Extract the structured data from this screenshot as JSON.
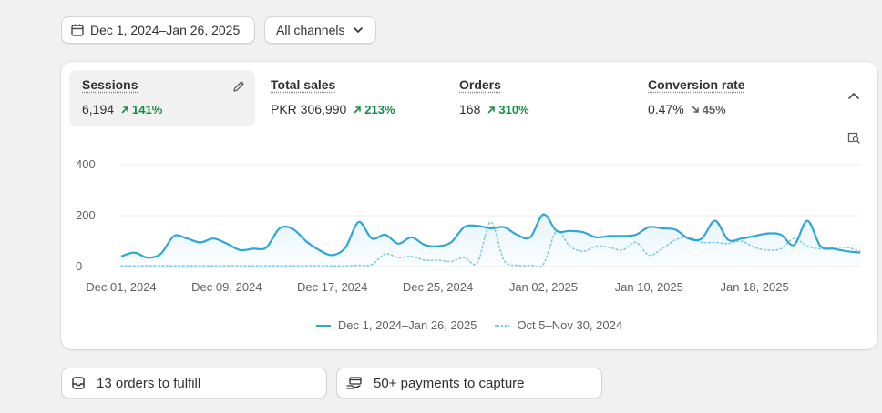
{
  "filters": {
    "date_range": "Dec 1, 2024–Jan 26, 2025",
    "channel": "All channels"
  },
  "metrics": [
    {
      "label": "Sessions",
      "value": "6,194",
      "change": "141%",
      "direction": "up"
    },
    {
      "label": "Total sales",
      "value": "PKR 306,990",
      "change": "213%",
      "direction": "up"
    },
    {
      "label": "Orders",
      "value": "168",
      "change": "310%",
      "direction": "up"
    },
    {
      "label": "Conversion rate",
      "value": "0.47%",
      "change": "45%",
      "direction": "down"
    }
  ],
  "colors": {
    "primary_series": "#2fa6d6",
    "comparison_series": "#7fc9e6",
    "positive": "#1a8a4a"
  },
  "chart_data": {
    "type": "line",
    "x_start": "2024-12-01",
    "x_end": "2025-01-26",
    "y_ticks": [
      "400",
      "200",
      "0"
    ],
    "x_tick_labels": [
      "Dec 01, 2024",
      "Dec 09, 2024",
      "Dec 17, 2024",
      "Dec 25, 2024",
      "Jan 02, 2025",
      "Jan 10, 2025",
      "Jan 18, 2025"
    ],
    "ylim": [
      0,
      400
    ],
    "grid": true,
    "legend_position": "bottom",
    "series": [
      {
        "name": "Dec 1, 2024–Jan 26, 2025",
        "style": "solid",
        "values": [
          40,
          55,
          35,
          50,
          120,
          110,
          95,
          110,
          90,
          65,
          70,
          75,
          150,
          148,
          100,
          65,
          45,
          75,
          175,
          110,
          125,
          90,
          115,
          85,
          80,
          95,
          155,
          160,
          150,
          155,
          125,
          115,
          205,
          140,
          140,
          135,
          115,
          120,
          120,
          125,
          155,
          150,
          145,
          110,
          110,
          180,
          105,
          110,
          120,
          130,
          125,
          85,
          180,
          80,
          70,
          60,
          55
        ]
      },
      {
        "name": "Oct 5–Nov 30, 2024",
        "style": "dotted",
        "values": [
          3,
          3,
          3,
          3,
          3,
          3,
          3,
          3,
          3,
          3,
          3,
          3,
          3,
          3,
          3,
          3,
          3,
          3,
          5,
          8,
          50,
          35,
          40,
          25,
          25,
          20,
          35,
          15,
          175,
          25,
          5,
          5,
          10,
          140,
          80,
          60,
          80,
          75,
          65,
          95,
          45,
          70,
          105,
          115,
          95,
          95,
          90,
          100,
          75,
          65,
          70,
          110,
          80,
          70,
          75,
          75,
          60
        ]
      }
    ]
  },
  "legend": {
    "current": "Dec 1, 2024–Jan 26, 2025",
    "previous": "Oct 5–Nov 30, 2024"
  },
  "tasks": {
    "fulfill": "13 orders to fulfill",
    "capture": "50+ payments to capture"
  }
}
